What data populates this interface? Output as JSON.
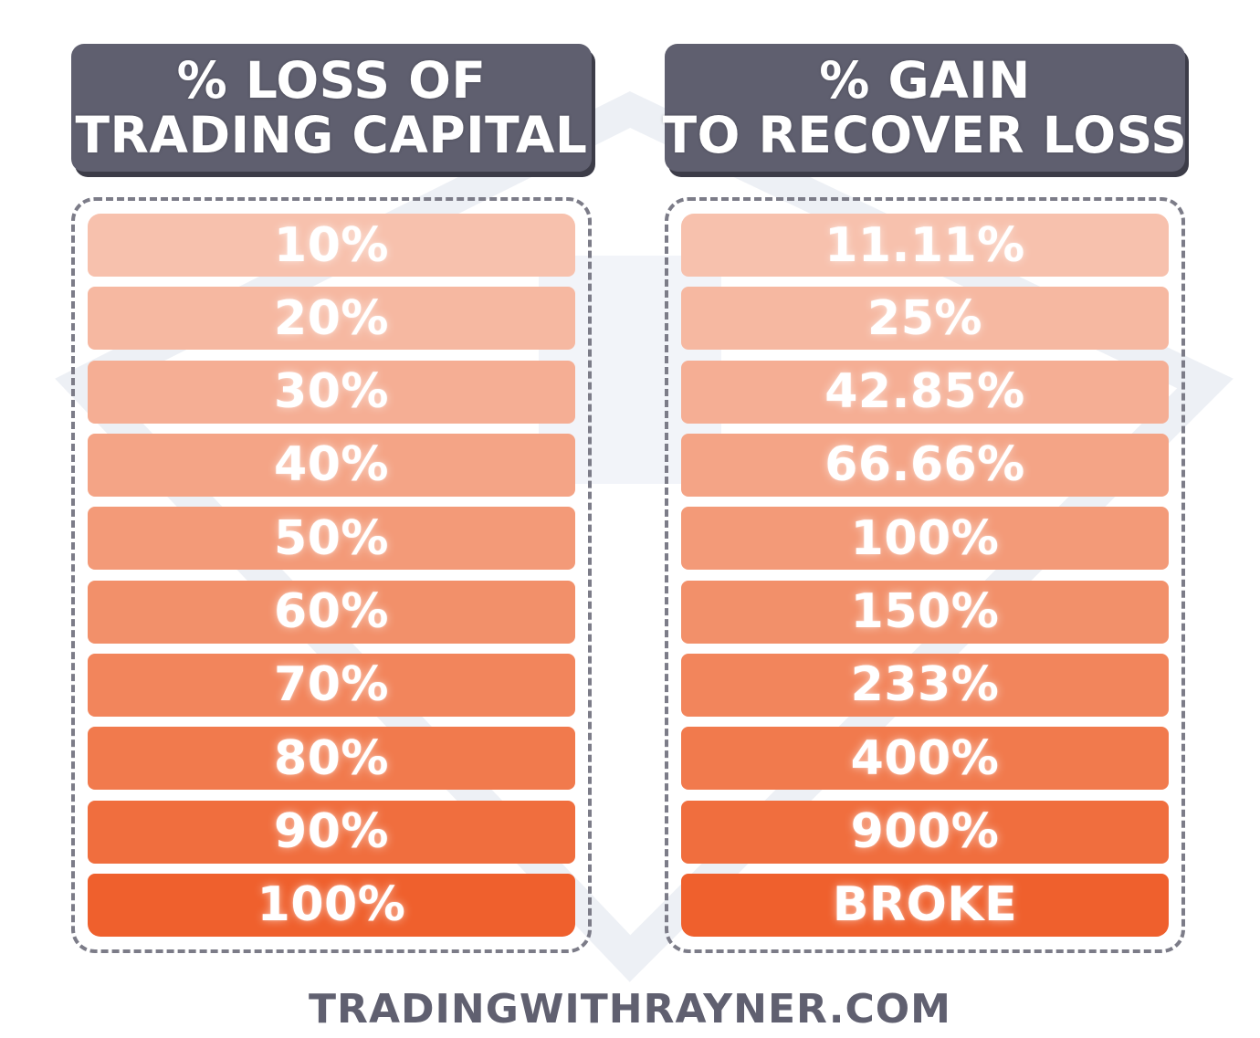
{
  "left_column": {
    "title_line1": "% LOSS OF",
    "title_line2": "TRADING CAPITAL",
    "rows": [
      "10%",
      "20%",
      "30%",
      "40%",
      "50%",
      "60%",
      "70%",
      "80%",
      "90%",
      "100%"
    ]
  },
  "right_column": {
    "title_line1": "% GAIN",
    "title_line2": "TO RECOVER LOSS",
    "rows": [
      "11.11%",
      "25%",
      "42.85%",
      "66.66%",
      "100%",
      "150%",
      "233%",
      "400%",
      "900%",
      "BROKE"
    ]
  },
  "row_colors": [
    "#f7c1ad",
    "#f6b8a1",
    "#f5ae94",
    "#f4a486",
    "#f39a78",
    "#f2906a",
    "#f2855c",
    "#f17a4d",
    "#f06e3e",
    "#ef602d"
  ],
  "header_color": "#5f5f6f",
  "footer": {
    "text": "TRADINGWITHRAYNER.COM"
  }
}
